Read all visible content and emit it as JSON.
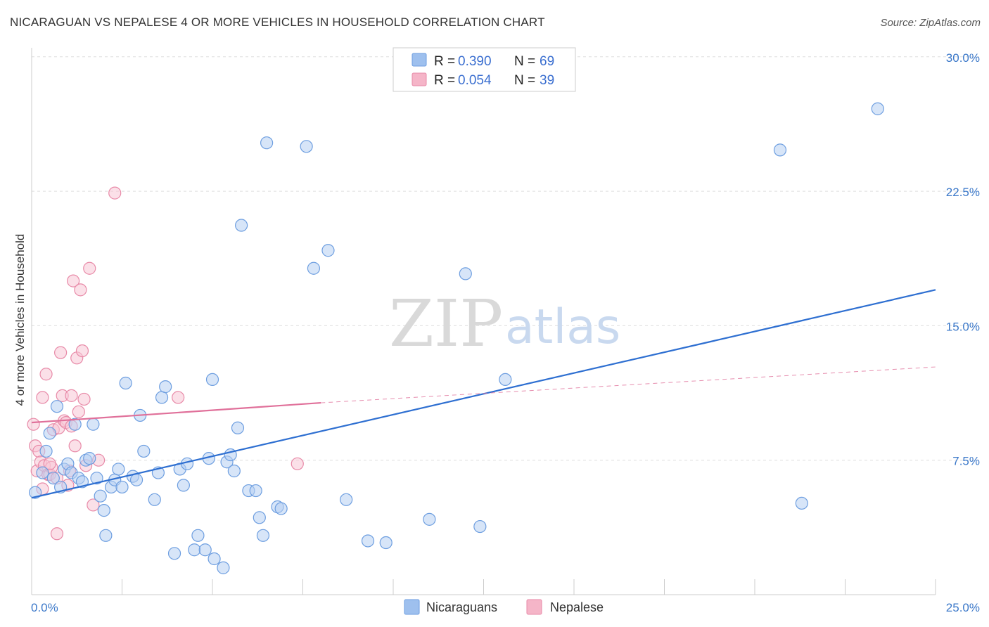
{
  "header": {
    "title": "NICARAGUAN VS NEPALESE 4 OR MORE VEHICLES IN HOUSEHOLD CORRELATION CHART",
    "source": "Source: ZipAtlas.com"
  },
  "watermark": {
    "zip": "ZIP",
    "atlas": "atlas"
  },
  "legend": {
    "rows": [
      {
        "r_label": "R =",
        "r_value": "0.390",
        "n_label": "N =",
        "n_value": "69",
        "color": "#9ec0ee"
      },
      {
        "r_label": "R =",
        "r_value": "0.054",
        "n_label": "N =",
        "n_value": "39",
        "color": "#f5b5c8"
      }
    ]
  },
  "bottom_legend": [
    {
      "label": "Nicaraguans",
      "color": "#9ec0ee"
    },
    {
      "label": "Nepalese",
      "color": "#f5b5c8"
    }
  ],
  "colors": {
    "blue_fill": "#b7d0f2",
    "blue_stroke": "#6d9ee0",
    "blue_line": "#2e6fd1",
    "pink_fill": "#f7c6d5",
    "pink_stroke": "#e88aa8",
    "pink_line": "#e0709a",
    "grid": "#dddddd",
    "tick_text": "#3b78c9"
  },
  "chart_data": {
    "type": "scatter",
    "title": "NICARAGUAN VS NEPALESE 4 OR MORE VEHICLES IN HOUSEHOLD CORRELATION CHART",
    "xlabel": "",
    "ylabel": "4 or more Vehicles in Household",
    "xlim": [
      0,
      25
    ],
    "ylim": [
      0,
      30.5
    ],
    "x_tick_labels": [
      "0.0%",
      "25.0%"
    ],
    "y_ticks": [
      7.5,
      15.0,
      22.5,
      30.0
    ],
    "y_tick_labels": [
      "7.5%",
      "15.0%",
      "22.5%",
      "30.0%"
    ],
    "grid": true,
    "legend_position": "top-center",
    "series": [
      {
        "name": "Nicaraguans",
        "r": "0.390",
        "n": "69",
        "trend": {
          "x": [
            0,
            25
          ],
          "y": [
            5.4,
            17.0
          ],
          "style": "solid"
        },
        "points": [
          [
            0.1,
            5.7
          ],
          [
            0.3,
            6.8
          ],
          [
            0.4,
            8.0
          ],
          [
            0.5,
            9.0
          ],
          [
            0.6,
            6.5
          ],
          [
            0.7,
            10.5
          ],
          [
            0.8,
            6.0
          ],
          [
            0.9,
            7.0
          ],
          [
            1.0,
            7.3
          ],
          [
            1.1,
            6.8
          ],
          [
            1.2,
            9.5
          ],
          [
            1.3,
            6.5
          ],
          [
            1.4,
            6.3
          ],
          [
            1.5,
            7.5
          ],
          [
            1.6,
            7.6
          ],
          [
            1.7,
            9.5
          ],
          [
            1.8,
            6.5
          ],
          [
            1.9,
            5.5
          ],
          [
            2.0,
            4.7
          ],
          [
            2.05,
            3.3
          ],
          [
            2.2,
            6.0
          ],
          [
            2.3,
            6.4
          ],
          [
            2.4,
            7.0
          ],
          [
            2.5,
            6.0
          ],
          [
            2.6,
            11.8
          ],
          [
            2.8,
            6.6
          ],
          [
            2.9,
            6.4
          ],
          [
            3.0,
            10.0
          ],
          [
            3.1,
            8.0
          ],
          [
            3.4,
            5.3
          ],
          [
            3.5,
            6.8
          ],
          [
            3.6,
            11.0
          ],
          [
            3.7,
            11.6
          ],
          [
            3.95,
            2.3
          ],
          [
            4.1,
            7.0
          ],
          [
            4.2,
            6.1
          ],
          [
            4.3,
            7.3
          ],
          [
            4.5,
            2.5
          ],
          [
            4.6,
            3.3
          ],
          [
            4.8,
            2.5
          ],
          [
            4.9,
            7.6
          ],
          [
            5.0,
            12.0
          ],
          [
            5.05,
            2.0
          ],
          [
            5.3,
            1.5
          ],
          [
            5.4,
            7.4
          ],
          [
            5.5,
            7.8
          ],
          [
            5.6,
            6.9
          ],
          [
            5.7,
            9.3
          ],
          [
            5.8,
            20.6
          ],
          [
            6.0,
            5.8
          ],
          [
            6.2,
            5.8
          ],
          [
            6.3,
            4.3
          ],
          [
            6.4,
            3.3
          ],
          [
            6.5,
            25.2
          ],
          [
            6.8,
            4.9
          ],
          [
            6.9,
            4.8
          ],
          [
            7.6,
            25.0
          ],
          [
            7.8,
            18.2
          ],
          [
            8.2,
            19.2
          ],
          [
            8.7,
            5.3
          ],
          [
            9.3,
            3.0
          ],
          [
            9.8,
            2.9
          ],
          [
            11.0,
            4.2
          ],
          [
            12.0,
            17.9
          ],
          [
            12.4,
            3.8
          ],
          [
            13.1,
            12.0
          ],
          [
            20.7,
            24.8
          ],
          [
            21.3,
            5.1
          ],
          [
            23.4,
            27.1
          ]
        ]
      },
      {
        "name": "Nepalese",
        "r": "0.054",
        "n": "39",
        "trend": {
          "x": [
            0,
            8.0
          ],
          "y": [
            9.6,
            10.7
          ],
          "style": "solid",
          "extension": {
            "x": [
              8.0,
              25
            ],
            "y": [
              10.7,
              12.7
            ],
            "style": "dashed"
          }
        },
        "points": [
          [
            0.05,
            9.5
          ],
          [
            0.1,
            8.3
          ],
          [
            0.15,
            6.9
          ],
          [
            0.2,
            8.0
          ],
          [
            0.25,
            7.4
          ],
          [
            0.3,
            11.0
          ],
          [
            0.35,
            7.2
          ],
          [
            0.4,
            12.3
          ],
          [
            0.45,
            6.7
          ],
          [
            0.5,
            6.7
          ],
          [
            0.55,
            7.1
          ],
          [
            0.6,
            9.2
          ],
          [
            0.7,
            3.4
          ],
          [
            0.75,
            9.3
          ],
          [
            0.8,
            13.5
          ],
          [
            0.85,
            11.1
          ],
          [
            0.9,
            9.7
          ],
          [
            0.95,
            9.6
          ],
          [
            1.0,
            6.1
          ],
          [
            1.05,
            6.9
          ],
          [
            1.1,
            11.1
          ],
          [
            1.15,
            17.5
          ],
          [
            1.2,
            8.3
          ],
          [
            1.25,
            13.2
          ],
          [
            1.3,
            10.2
          ],
          [
            1.35,
            17.0
          ],
          [
            1.4,
            13.6
          ],
          [
            1.45,
            10.9
          ],
          [
            1.6,
            18.2
          ],
          [
            1.7,
            5.0
          ],
          [
            1.85,
            7.5
          ],
          [
            2.3,
            22.4
          ],
          [
            4.05,
            11.0
          ],
          [
            7.35,
            7.3
          ],
          [
            0.5,
            7.3
          ],
          [
            0.3,
            5.9
          ],
          [
            0.7,
            6.5
          ],
          [
            1.5,
            7.2
          ],
          [
            1.1,
            9.4
          ]
        ]
      }
    ]
  }
}
